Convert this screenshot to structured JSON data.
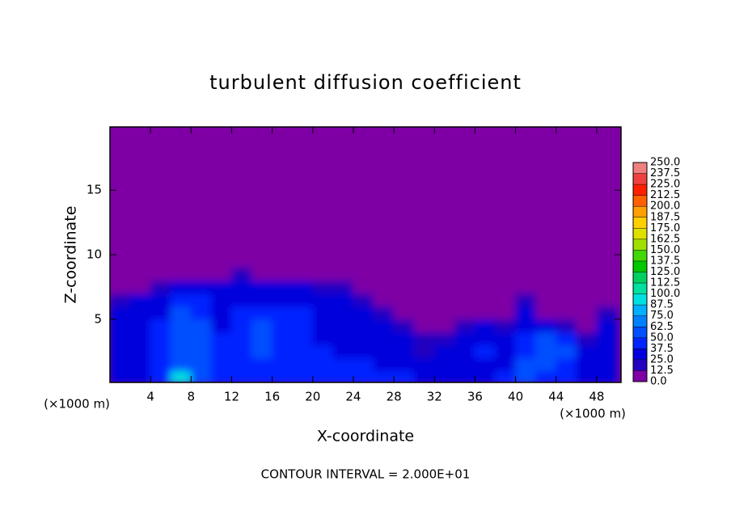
{
  "chart_data": {
    "type": "heatmap",
    "title": "turbulent diffusion coefficient",
    "x_label": "X-coordinate",
    "y_label": "Z-coordinate",
    "x_unit_label": "(×1000 m)",
    "annotation": "CONTOUR INTERVAL = 2.000E+01",
    "xlim": [
      0,
      50.4
    ],
    "ylim": [
      0.1,
      19.9
    ],
    "xticks": [
      4,
      8,
      12,
      16,
      20,
      24,
      28,
      32,
      36,
      40,
      44,
      48
    ],
    "yticks": [
      5,
      10,
      15
    ],
    "x": [
      1,
      3,
      5,
      7,
      9,
      11,
      13,
      15,
      17,
      19,
      21,
      23,
      25,
      27,
      29,
      31,
      33,
      35,
      37,
      39,
      41,
      43,
      45,
      47,
      49
    ],
    "y": [
      0.5,
      1.5,
      2.5,
      3.5,
      4.5,
      5.5,
      6.5,
      7.5,
      8.5,
      9.5
    ],
    "z": [
      [
        35,
        35,
        40,
        90,
        55,
        40,
        40,
        45,
        40,
        45,
        40,
        40,
        40,
        38,
        38,
        35,
        35,
        30,
        35,
        40,
        55,
        40,
        40,
        35,
        35
      ],
      [
        30,
        35,
        45,
        55,
        55,
        40,
        45,
        45,
        40,
        45,
        40,
        40,
        38,
        35,
        35,
        30,
        30,
        30,
        30,
        35,
        50,
        50,
        40,
        30,
        30
      ],
      [
        30,
        35,
        40,
        50,
        55,
        45,
        45,
        50,
        45,
        45,
        38,
        35,
        35,
        30,
        30,
        20,
        25,
        30,
        40,
        35,
        45,
        55,
        50,
        30,
        35
      ],
      [
        30,
        35,
        40,
        50,
        55,
        45,
        45,
        55,
        45,
        45,
        35,
        35,
        30,
        30,
        25,
        15,
        20,
        25,
        35,
        30,
        40,
        55,
        45,
        20,
        30
      ],
      [
        30,
        35,
        40,
        55,
        50,
        35,
        40,
        50,
        40,
        40,
        35,
        35,
        30,
        25,
        20,
        10,
        5,
        15,
        25,
        20,
        30,
        30,
        15,
        10,
        25
      ],
      [
        25,
        30,
        35,
        50,
        45,
        35,
        40,
        45,
        40,
        40,
        35,
        30,
        30,
        20,
        10,
        0,
        0,
        5,
        10,
        10,
        25,
        10,
        0,
        5,
        20
      ],
      [
        20,
        25,
        30,
        45,
        40,
        30,
        35,
        35,
        35,
        35,
        30,
        25,
        20,
        10,
        0,
        0,
        0,
        0,
        5,
        0,
        15,
        0,
        0,
        0,
        10
      ],
      [
        0,
        5,
        20,
        30,
        30,
        25,
        30,
        25,
        25,
        25,
        20,
        15,
        5,
        0,
        0,
        0,
        0,
        0,
        0,
        0,
        0,
        0,
        0,
        0,
        0
      ],
      [
        0,
        0,
        0,
        5,
        10,
        10,
        15,
        5,
        0,
        5,
        5,
        0,
        0,
        0,
        0,
        0,
        0,
        0,
        0,
        0,
        0,
        0,
        0,
        0,
        0
      ],
      [
        0,
        0,
        0,
        0,
        0,
        0,
        0,
        0,
        0,
        0,
        0,
        0,
        0,
        0,
        0,
        0,
        0,
        0,
        0,
        0,
        0,
        0,
        0,
        0,
        0
      ]
    ],
    "colorbar": {
      "ticks": [
        {
          "value": 0,
          "label": "0.0"
        },
        12.5,
        {
          "value": 25,
          "label": "25.0"
        },
        37.5,
        {
          "value": 50,
          "label": "50.0"
        },
        62.5,
        {
          "value": 75,
          "label": "75.0"
        },
        87.5,
        {
          "value": 100,
          "label": "100.0"
        },
        112.5,
        {
          "value": 125,
          "label": "125.0"
        },
        137.5,
        {
          "value": 150,
          "label": "150.0"
        },
        162.5,
        {
          "value": 175,
          "label": "175.0"
        },
        187.5,
        {
          "value": 200,
          "label": "200.0"
        },
        212.5,
        {
          "value": 225,
          "label": "225.0"
        },
        237.5,
        {
          "value": 250,
          "label": "250.0"
        }
      ],
      "colors": [
        "#7e00a5",
        "#2400c0",
        "#0000dc",
        "#0024ff",
        "#0050ff",
        "#0080ff",
        "#00b0ff",
        "#00e0e0",
        "#00e0a0",
        "#00d060",
        "#00c800",
        "#40d800",
        "#a0e000",
        "#e0e000",
        "#ffd000",
        "#ffa000",
        "#ff6000",
        "#ff2000",
        "#f04040",
        "#f08080"
      ]
    }
  }
}
